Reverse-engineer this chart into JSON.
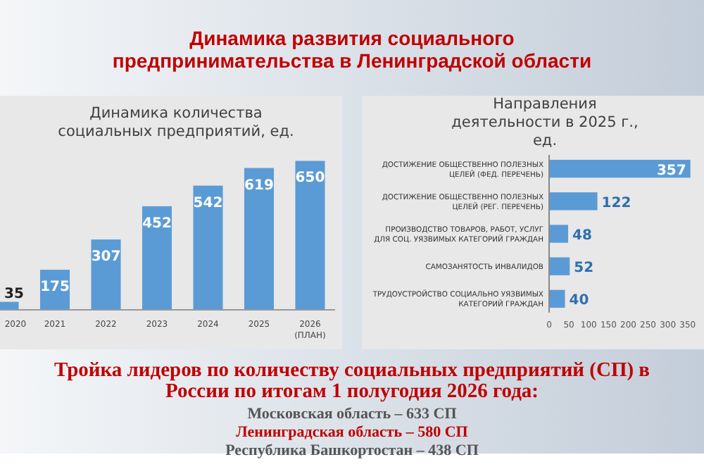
{
  "chart_data": [
    {
      "type": "other",
      "title": "Динамика развития социального предпринимательства в Ленинградской области",
      "annotations": [
        "Тройка лидеров по количеству социальных предприятий (СП) в России по итогам 1 полугодия 2026 года:",
        "Московская область – 633 СП",
        "Ленинградская область – 580 СП",
        "Республика Башкортостан – 438 СП"
      ]
    },
    {
      "type": "bar",
      "title": "Динамика количества социальных предприятий, ед.",
      "categories": [
        "2020",
        "2021",
        "2022",
        "2023",
        "2024",
        "2025",
        "2026 (ПЛАН)"
      ],
      "values": [
        35,
        175,
        307,
        452,
        542,
        619,
        650
      ],
      "color": "#5b9bd5",
      "data_labels": true
    },
    {
      "type": "bar",
      "orientation": "horizontal",
      "title": "Направления деятельности в 2025 г., ед.",
      "categories": [
        "ДОСТИЖЕНИЕ ОБЩЕСТВЕННО ПОЛЕЗНЫХ ЦЕЛЕЙ (ФЕД. ПЕРЕЧЕНЬ)",
        "ДОСТИЖЕНИЕ ОБЩЕСТВЕННО ПОЛЕЗНЫХ ЦЕЛЕЙ (РЕГ. ПЕРЕЧЕНЬ)",
        "ПРОИЗВОДСТВО ТОВАРОВ, РАБОТ, УСЛУГ ДЛЯ СОЦ. УЯЗВИМЫХ КАТЕГОРИЙ ГРАЖДАН",
        "САМОЗАНЯТОСТЬ ИНВАЛИДОВ",
        "ТРУДОУСТРОЙСТВО СОЦИАЛЬНО УЯЗВИМЫХ КАТЕГОРИЙ ГРАЖДАН"
      ],
      "values": [
        357,
        122,
        48,
        52,
        40
      ],
      "color": "#5b9bd5",
      "xlim": [
        0,
        370
      ],
      "xticks": [
        0,
        50,
        100,
        150,
        200,
        250,
        300,
        350
      ],
      "data_labels": true
    }
  ]
}
